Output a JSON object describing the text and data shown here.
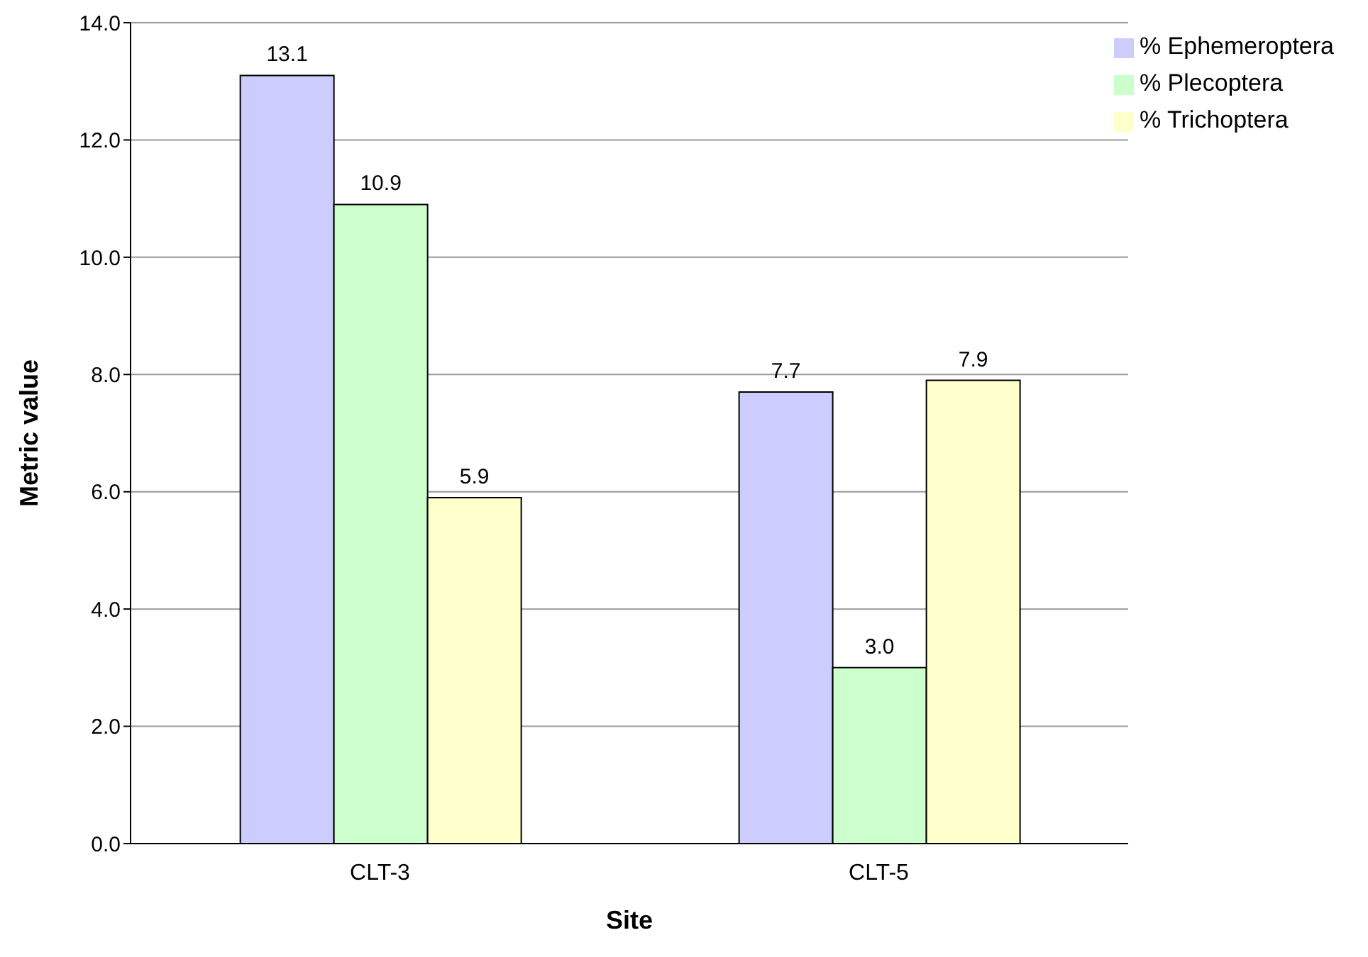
{
  "chart_data": {
    "type": "bar",
    "xlabel": "Site",
    "ylabel": "Metric value",
    "categories": [
      "CLT-3",
      "CLT-5"
    ],
    "series": [
      {
        "name": "% Ephemeroptera",
        "color": "#ccccff",
        "values": [
          13.1,
          7.7
        ],
        "value_labels": [
          "13.1",
          "7.7"
        ]
      },
      {
        "name": "% Plecoptera",
        "color": "#ccffcc",
        "values": [
          10.9,
          3.0
        ],
        "value_labels": [
          "10.9",
          "3.0"
        ]
      },
      {
        "name": "% Trichoptera",
        "color": "#ffffcc",
        "values": [
          5.9,
          7.9
        ],
        "value_labels": [
          "5.9",
          "7.9"
        ]
      }
    ],
    "ylim": [
      0,
      14
    ],
    "yticks": [
      {
        "value": 0,
        "label": "0.0"
      },
      {
        "value": 2,
        "label": "2.0"
      },
      {
        "value": 4,
        "label": "4.0"
      },
      {
        "value": 6,
        "label": "6.0"
      },
      {
        "value": 8,
        "label": "8.0"
      },
      {
        "value": 10,
        "label": "10.0"
      },
      {
        "value": 12,
        "label": "12.0"
      },
      {
        "value": 14,
        "label": "14.0"
      }
    ],
    "grid": "y",
    "legend": "top right"
  }
}
